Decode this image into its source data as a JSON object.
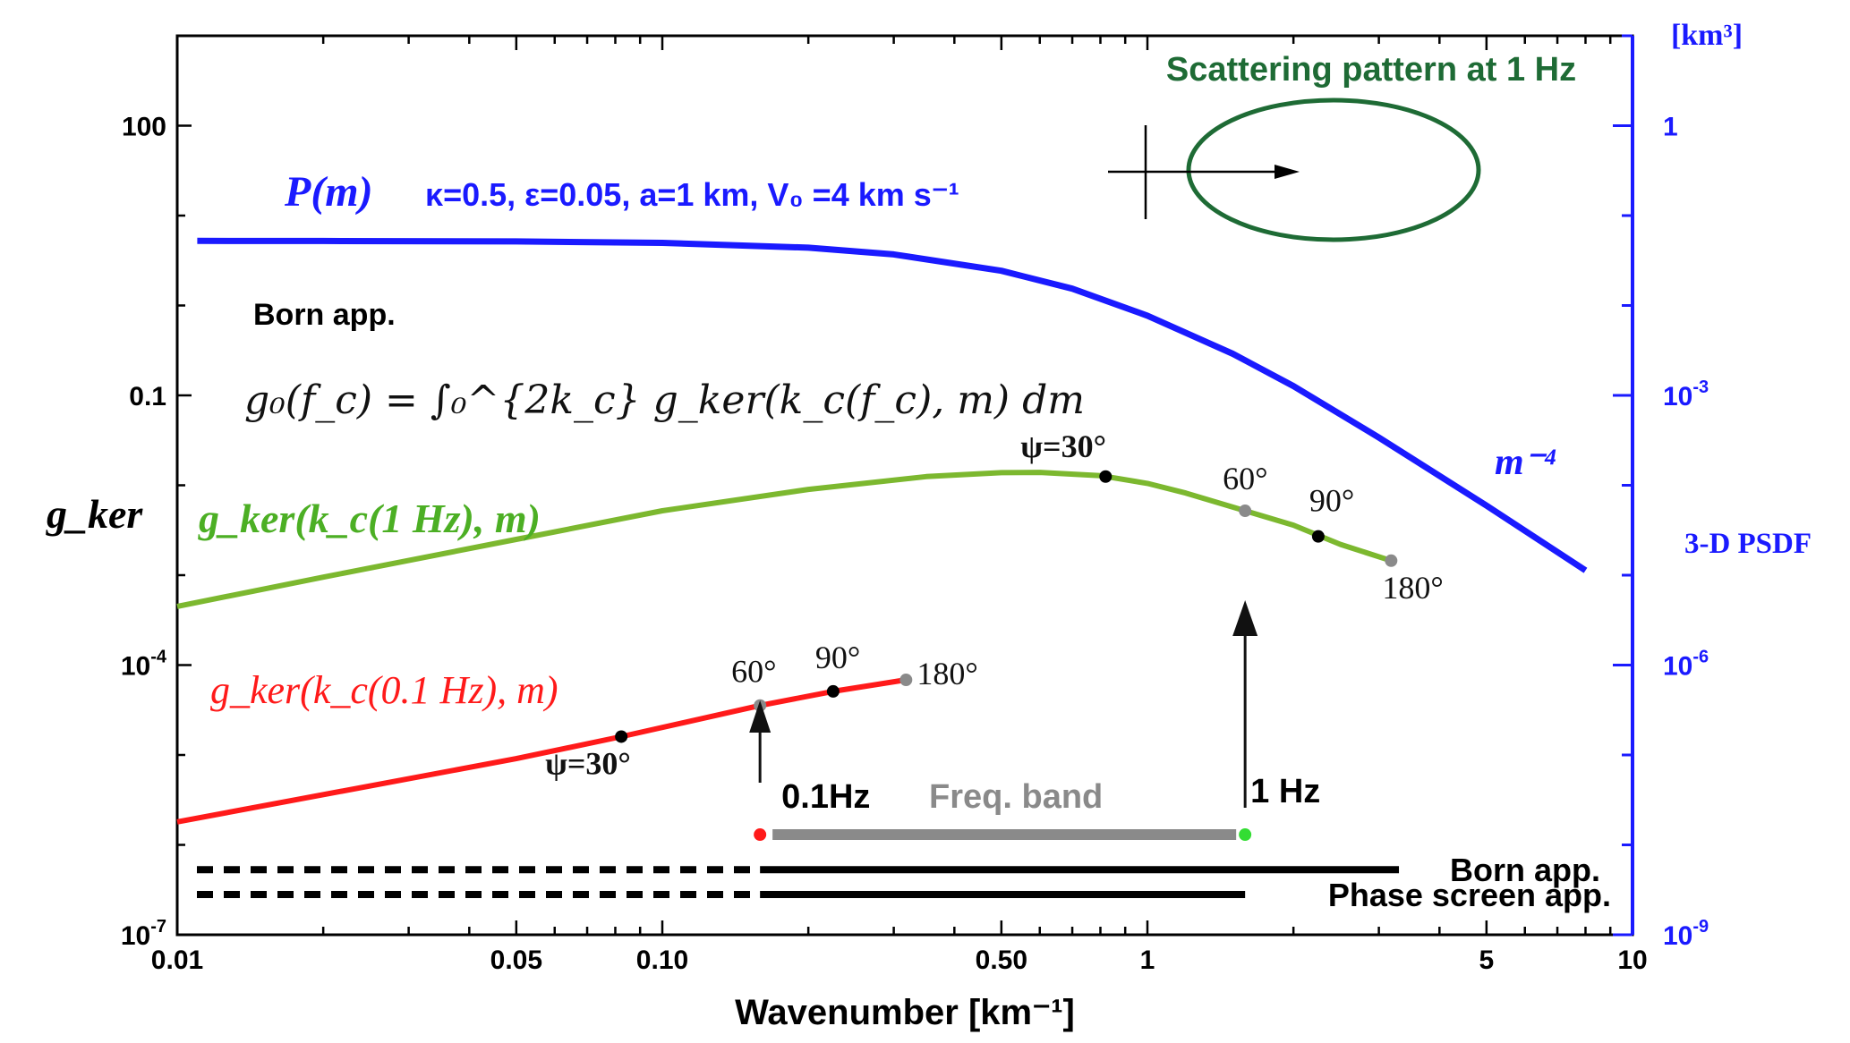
{
  "chart_data": {
    "type": "line",
    "xlabel": "Wavenumber [km⁻¹]",
    "xscale": "log",
    "xlim": [
      0.01,
      10
    ],
    "x_ticks": [
      {
        "value": 0.01,
        "label": "0.01"
      },
      {
        "value": 0.05,
        "label": "0.05"
      },
      {
        "value": 0.1,
        "label": "0.10"
      },
      {
        "value": 0.5,
        "label": "0.50"
      },
      {
        "value": 1,
        "label": "1"
      },
      {
        "value": 5,
        "label": "5"
      },
      {
        "value": 10,
        "label": "10"
      }
    ],
    "y_left": {
      "label": "g_ker",
      "scale": "log",
      "lim": [
        1e-07,
        1000
      ],
      "ticks": [
        {
          "value": 1e-07,
          "base": "10",
          "exp": "-7"
        },
        {
          "value": 0.0001,
          "base": "10",
          "exp": "-4"
        },
        {
          "value": 0.1,
          "base": "0.1",
          "exp": ""
        },
        {
          "value": 100,
          "base": "100",
          "exp": ""
        }
      ]
    },
    "y_right": {
      "label": "3-D PSDF",
      "unit": "[km³]",
      "scale": "log",
      "lim": [
        1e-09,
        10
      ],
      "ticks": [
        {
          "value": 1e-09,
          "base": "10",
          "exp": "-9"
        },
        {
          "value": 1e-06,
          "base": "10",
          "exp": "-6"
        },
        {
          "value": 0.001,
          "base": "10",
          "exp": "-3"
        },
        {
          "value": 1,
          "base": "1",
          "exp": ""
        }
      ]
    },
    "series": [
      {
        "name": "P(m)",
        "axis": "right",
        "color": "#1a1aff",
        "params": "κ=0.5, ε=0.05, a=1 km, V₀ =4 km s⁻¹",
        "slope_label": "m⁻⁴",
        "x": [
          0.011,
          0.02,
          0.05,
          0.1,
          0.2,
          0.3,
          0.5,
          0.7,
          1,
          1.5,
          2,
          3,
          5,
          8
        ],
        "y": [
          0.0523,
          0.0522,
          0.0516,
          0.0497,
          0.0439,
          0.037,
          0.0243,
          0.0154,
          0.0077,
          0.0029,
          0.00127,
          0.00034,
          5.95e-05,
          1.13e-05
        ]
      },
      {
        "name": "g_ker(k_c(1 Hz), m)",
        "axis": "left",
        "color": "#7cb82f",
        "x": [
          0.01,
          0.02,
          0.05,
          0.1,
          0.2,
          0.35,
          0.5,
          0.6,
          0.8,
          1,
          1.2,
          1.59,
          2,
          2.5,
          3.18
        ],
        "y": [
          0.00045,
          0.00095,
          0.0025,
          0.0052,
          0.009,
          0.0125,
          0.0138,
          0.0139,
          0.0128,
          0.0105,
          0.0082,
          0.0052,
          0.0036,
          0.0022,
          0.00145
        ],
        "markers": [
          {
            "x": 0.82,
            "y": 0.0125,
            "label": "ψ=30°",
            "color": "#000000"
          },
          {
            "x": 1.59,
            "y": 0.0052,
            "label": "60°",
            "color": "#8a8a8a"
          },
          {
            "x": 2.25,
            "y": 0.0027,
            "label": "90°",
            "color": "#000000"
          },
          {
            "x": 3.18,
            "y": 0.00145,
            "label": "180°",
            "color": "#8a8a8a"
          }
        ]
      },
      {
        "name": "g_ker(k_c(0.1 Hz), m)",
        "axis": "left",
        "color": "#ff1a1a",
        "x": [
          0.01,
          0.05,
          0.0823,
          0.159,
          0.225,
          0.318
        ],
        "y": [
          1.8e-06,
          9.1e-06,
          1.6e-05,
          3.55e-05,
          5.1e-05,
          6.85e-05
        ],
        "markers": [
          {
            "x": 0.0823,
            "y": 1.6e-05,
            "label": "ψ=30°",
            "color": "#000000"
          },
          {
            "x": 0.159,
            "y": 3.55e-05,
            "label": "60°",
            "color": "#8a8a8a"
          },
          {
            "x": 0.225,
            "y": 5.1e-05,
            "label": "90°",
            "color": "#000000"
          },
          {
            "x": 0.318,
            "y": 6.85e-05,
            "label": "180°",
            "color": "#8a8a8a"
          }
        ]
      }
    ],
    "freq_band": {
      "label": "Freq. band",
      "x_start": 0.159,
      "x_end": 1.59,
      "y": 1.3e-06,
      "start_label": "0.1Hz",
      "end_label": "1 Hz",
      "start_color": "#ff1a1a",
      "end_color": "#33dd33",
      "bar_color": "#8a8a8a"
    },
    "validity_ranges": [
      {
        "label": "Born app.",
        "y": 5.3e-07,
        "dashed_from": 0.01,
        "dashed_to": 0.159,
        "solid_from": 0.159,
        "solid_to": 3.3
      },
      {
        "label": "Phase screen app.",
        "y": 2.8e-07,
        "dashed_from": 0.01,
        "dashed_to": 0.159,
        "solid_from": 0.159,
        "solid_to": 1.59
      }
    ],
    "annotations": {
      "born_title": "Born app.",
      "formula": "g₀(f_c) = ∫₀^{2k_c} g_ker(k_c(f_c), m) dm",
      "scattering_title": "Scattering pattern at 1 Hz",
      "scattering_color": "#1e6b35"
    }
  }
}
